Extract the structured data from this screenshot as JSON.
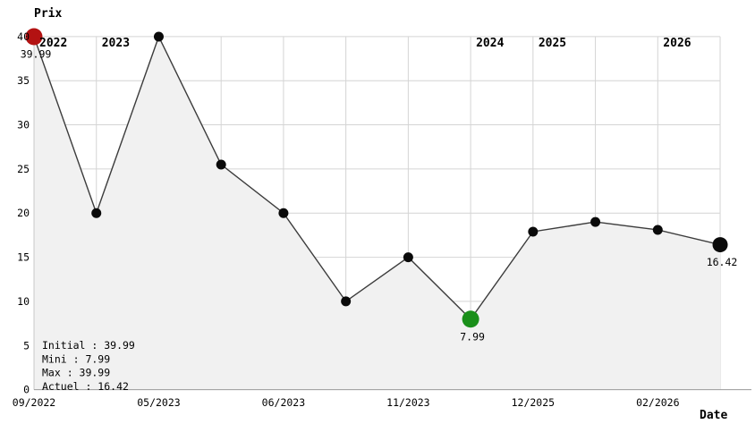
{
  "chart_data": {
    "type": "line",
    "title": "",
    "ylabel": "Prix",
    "xlabel": "Date",
    "ylim": [
      0,
      40
    ],
    "y_ticks": [
      0,
      5,
      10,
      15,
      20,
      25,
      30,
      35,
      40
    ],
    "grid": true,
    "area_fill": true,
    "points": [
      {
        "x_label": "09/2022",
        "value": 39.99,
        "marker": "initial",
        "point_label": "39.99"
      },
      {
        "value": 20
      },
      {
        "x_label": "05/2023",
        "value": 39.99
      },
      {
        "value": 25.5
      },
      {
        "x_label": "06/2023",
        "value": 20
      },
      {
        "value": 10
      },
      {
        "x_label": "11/2023",
        "value": 15
      },
      {
        "value": 7.99,
        "marker": "min",
        "point_label": "7.99"
      },
      {
        "x_label": "12/2025",
        "value": 17.9
      },
      {
        "value": 19
      },
      {
        "x_label": "02/2026",
        "value": 18.1
      },
      {
        "value": 16.42,
        "marker": "current",
        "point_label": "16.42"
      }
    ],
    "year_labels": [
      {
        "text": "2022",
        "at_index": 0
      },
      {
        "text": "2023",
        "at_index": 1
      },
      {
        "text": "2024",
        "at_index": 7
      },
      {
        "text": "2025",
        "at_index": 8
      },
      {
        "text": "2026",
        "at_index": 10
      }
    ],
    "vertical_gridline_indices": [
      1,
      3,
      4,
      5,
      6,
      7,
      8,
      9,
      10,
      11
    ],
    "legend_position": "bottom-left",
    "legend": [
      {
        "text": "Initial : 39.99",
        "color": "#000000"
      },
      {
        "text": "Mini : 7.99",
        "color": "#008000"
      },
      {
        "text": "Max : 39.99",
        "color": "#a00000"
      },
      {
        "text": "Actuel : 16.42",
        "color": "#000000"
      }
    ]
  },
  "colors": {
    "grid": "#d4d4d4",
    "axis": "#9a9a9a",
    "plot_border": "#c8c8c8",
    "line": "#3c3c3c",
    "area_fill": "#f1f1f1",
    "point": "#0a0a0a",
    "marker_initial": "#b31212",
    "marker_initial_label": "#b22222",
    "marker_min": "#1a8f1a",
    "marker_min_label": "#008000",
    "marker_current": "#0a0a0a",
    "marker_current_label": "#000000"
  }
}
